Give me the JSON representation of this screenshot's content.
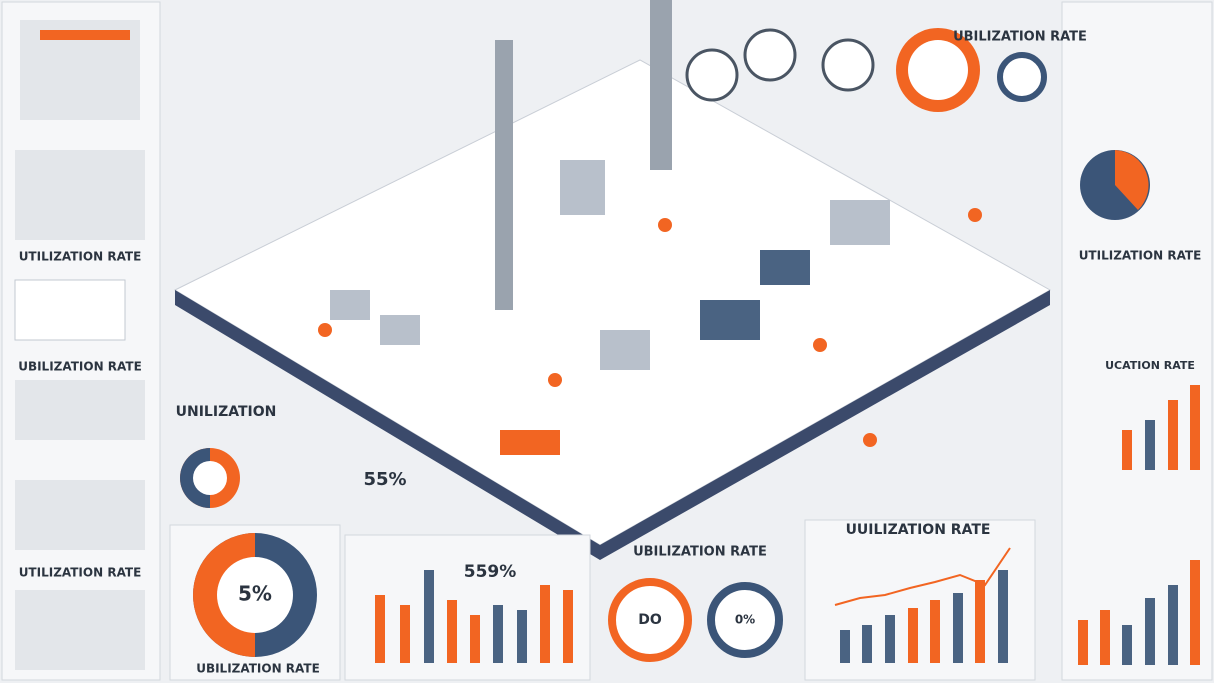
{
  "header": {
    "title": "UBILIZATION RATE"
  },
  "left_panel": {
    "labels": [
      "UTILIZATION RATE",
      "UBILIZATION RATE",
      "UTILIZATION RATE"
    ]
  },
  "center_left": {
    "heading": "UNILIZATION",
    "percent": "55%"
  },
  "bottom_left": {
    "donut_label": "5%",
    "caption": "UBILIZATION RATE"
  },
  "bottom_center": {
    "heading": "UBILIZATION RATE",
    "percent": "559%",
    "gauge_label": "DO",
    "gauge_label_2": "0%"
  },
  "bottom_right": {
    "chart_title": "UUILIZATION RATE"
  },
  "right_panel": {
    "labels": [
      "UTILIZATION RATE",
      "UCATION RATE"
    ]
  }
}
